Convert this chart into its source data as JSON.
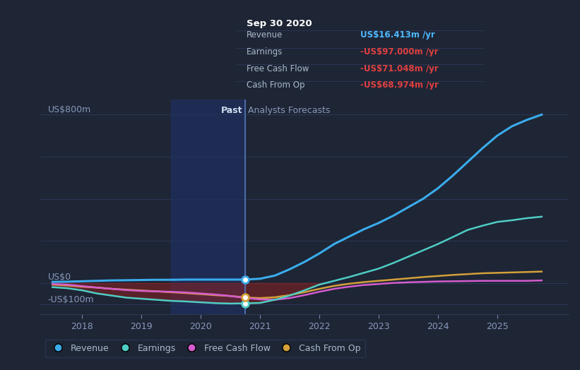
{
  "background_color": "#1e2535",
  "plot_bg_color": "#1e2535",
  "ylabel_800": "US$800m",
  "ylabel_0": "US$0",
  "ylabel_neg100": "-US$100m",
  "past_label": "Past",
  "forecast_label": "Analysts Forecasts",
  "divider_x": 2020.75,
  "highlight_start": 2019.5,
  "highlight_end": 2020.75,
  "xlim": [
    2017.3,
    2026.2
  ],
  "ylim": [
    -150,
    870
  ],
  "x_ticks": [
    2018,
    2019,
    2020,
    2021,
    2022,
    2023,
    2024,
    2025
  ],
  "tooltip": {
    "date": "Sep 30 2020",
    "bg": "#07090f",
    "border": "#303a55",
    "revenue_label": "Revenue",
    "revenue_val": "US$16.413m /yr",
    "revenue_color": "#4db8ff",
    "earnings_label": "Earnings",
    "earnings_val": "-US$97.000m /yr",
    "earnings_color": "#e04040",
    "fcf_label": "Free Cash Flow",
    "fcf_val": "-US$71.048m /yr",
    "fcf_color": "#e04040",
    "cfop_label": "Cash From Op",
    "cfop_val": "-US$68.974m /yr",
    "cfop_color": "#e04040"
  },
  "revenue": {
    "color": "#3aacec",
    "label": "Revenue",
    "x": [
      2017.5,
      2017.75,
      2018.0,
      2018.25,
      2018.5,
      2018.75,
      2019.0,
      2019.25,
      2019.5,
      2019.75,
      2020.0,
      2020.25,
      2020.5,
      2020.75,
      2021.0,
      2021.25,
      2021.5,
      2021.75,
      2022.0,
      2022.25,
      2022.5,
      2022.75,
      2023.0,
      2023.25,
      2023.5,
      2023.75,
      2024.0,
      2024.25,
      2024.5,
      2024.75,
      2025.0,
      2025.25,
      2025.5,
      2025.75
    ],
    "y": [
      5,
      6,
      8,
      10,
      12,
      13,
      14,
      15,
      15,
      16,
      16,
      16,
      16,
      16,
      20,
      35,
      65,
      100,
      140,
      185,
      220,
      255,
      285,
      320,
      360,
      400,
      450,
      510,
      575,
      640,
      700,
      745,
      775,
      800
    ]
  },
  "earnings": {
    "color": "#4ecdc4",
    "label": "Earnings",
    "x": [
      2017.5,
      2017.75,
      2018.0,
      2018.25,
      2018.5,
      2018.75,
      2019.0,
      2019.25,
      2019.5,
      2019.75,
      2020.0,
      2020.25,
      2020.5,
      2020.75,
      2021.0,
      2021.25,
      2021.5,
      2021.75,
      2022.0,
      2022.25,
      2022.5,
      2022.75,
      2023.0,
      2023.25,
      2023.5,
      2023.75,
      2024.0,
      2024.25,
      2024.5,
      2024.75,
      2025.0,
      2025.25,
      2025.5,
      2025.75
    ],
    "y": [
      -20,
      -25,
      -35,
      -50,
      -60,
      -70,
      -75,
      -80,
      -85,
      -88,
      -92,
      -96,
      -98,
      -97,
      -95,
      -80,
      -60,
      -35,
      -8,
      10,
      28,
      48,
      68,
      95,
      125,
      155,
      185,
      218,
      252,
      272,
      290,
      298,
      308,
      315
    ]
  },
  "fcf": {
    "color": "#d45cce",
    "label": "Free Cash Flow",
    "x": [
      2017.5,
      2017.75,
      2018.0,
      2018.25,
      2018.5,
      2018.75,
      2019.0,
      2019.25,
      2019.5,
      2019.75,
      2020.0,
      2020.25,
      2020.5,
      2020.75,
      2021.0,
      2021.25,
      2021.5,
      2021.75,
      2022.0,
      2022.25,
      2022.5,
      2022.75,
      2023.0,
      2023.25,
      2023.5,
      2023.75,
      2024.0,
      2024.25,
      2024.5,
      2024.75,
      2025.0,
      2025.25,
      2025.5,
      2025.75
    ],
    "y": [
      -5,
      -8,
      -15,
      -22,
      -28,
      -34,
      -38,
      -40,
      -42,
      -45,
      -50,
      -55,
      -62,
      -71,
      -78,
      -80,
      -72,
      -58,
      -42,
      -28,
      -18,
      -10,
      -5,
      0,
      3,
      5,
      7,
      8,
      9,
      10,
      10,
      10,
      10,
      12
    ]
  },
  "cfop": {
    "color": "#d4a03a",
    "label": "Cash From Op",
    "x": [
      2017.5,
      2017.75,
      2018.0,
      2018.25,
      2018.5,
      2018.75,
      2019.0,
      2019.25,
      2019.5,
      2019.75,
      2020.0,
      2020.25,
      2020.5,
      2020.75,
      2021.0,
      2021.25,
      2021.5,
      2021.75,
      2022.0,
      2022.25,
      2022.5,
      2022.75,
      2023.0,
      2023.25,
      2023.5,
      2023.75,
      2024.0,
      2024.25,
      2024.5,
      2024.75,
      2025.0,
      2025.25,
      2025.5,
      2025.75
    ],
    "y": [
      -8,
      -12,
      -18,
      -22,
      -28,
      -32,
      -36,
      -40,
      -44,
      -48,
      -53,
      -58,
      -62,
      -69,
      -72,
      -68,
      -58,
      -44,
      -28,
      -14,
      -4,
      4,
      10,
      16,
      22,
      28,
      33,
      38,
      42,
      46,
      48,
      50,
      52,
      54
    ]
  },
  "legend": [
    {
      "label": "Revenue",
      "color": "#3aacec"
    },
    {
      "label": "Earnings",
      "color": "#4ecdc4"
    },
    {
      "label": "Free Cash Flow",
      "color": "#d45cce"
    },
    {
      "label": "Cash From Op",
      "color": "#d4a03a"
    }
  ]
}
